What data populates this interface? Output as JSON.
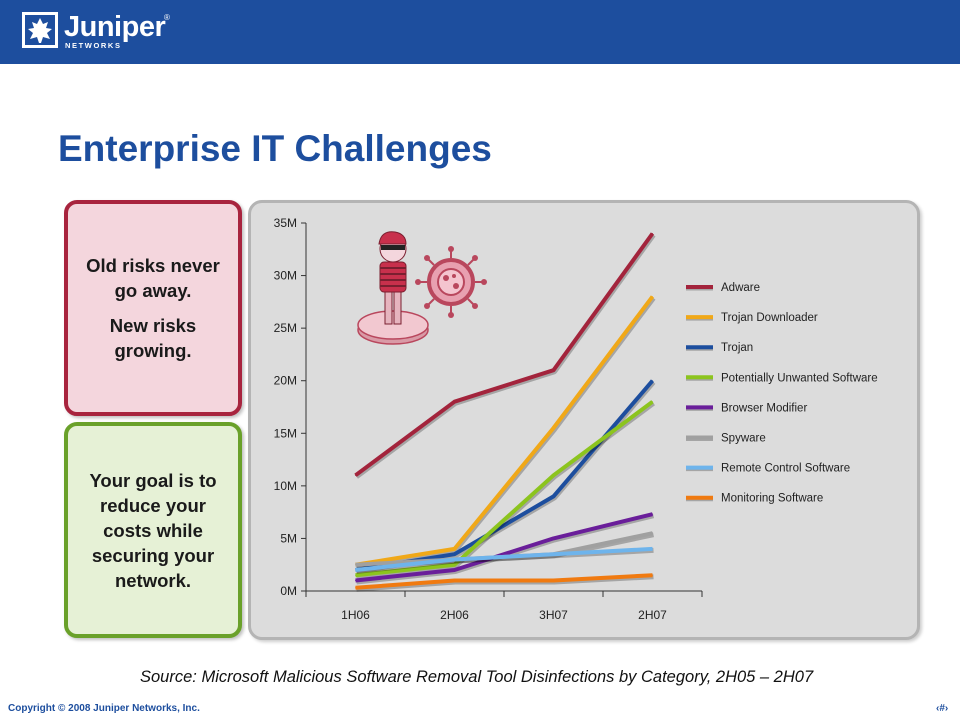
{
  "header": {
    "brand": "Juniper",
    "brand_sub": "NETWORKS",
    "brand_mark": "®",
    "color": "#1d4e9e"
  },
  "slide": {
    "title": "Enterprise IT Challenges",
    "box_risks": {
      "line1": "Old risks never go away.",
      "line2": "New risks growing.",
      "border_color": "#a8243e",
      "fill": "#f4d6dd"
    },
    "box_goal": {
      "text": "Your goal is to reduce your costs while securing your network.",
      "border_color": "#6aa12a",
      "fill": "#e6f1d6"
    },
    "source": "Source: Microsoft Malicious Software Removal Tool Disinfections by Category, 2H05 – 2H07"
  },
  "footer": {
    "copyright": "Copyright © 2008 Juniper Networks, Inc.",
    "page": "‹#›"
  },
  "illustration": {
    "icons": [
      "thief-icon",
      "virus-icon"
    ]
  },
  "chart_data": {
    "type": "line",
    "categories": [
      "1H06",
      "2H06",
      "3H07",
      "2H07"
    ],
    "ylim": [
      0,
      35
    ],
    "yticks": [
      "0M",
      "5M",
      "10M",
      "15M",
      "20M",
      "25M",
      "30M",
      "35M"
    ],
    "xlabel": "",
    "ylabel": "",
    "grid": false,
    "legend_position": "right",
    "series": [
      {
        "name": "Adware",
        "color": "#a3243c",
        "values": [
          11,
          18,
          21,
          34
        ]
      },
      {
        "name": "Trojan Downloader",
        "color": "#f0a818",
        "values": [
          2.5,
          4,
          15.5,
          28
        ]
      },
      {
        "name": "Trojan",
        "color": "#1d4e9e",
        "values": [
          2,
          3.5,
          9,
          20
        ]
      },
      {
        "name": "Potentially Unwanted Software",
        "color": "#8cc41e",
        "values": [
          1.5,
          2.5,
          11,
          18
        ]
      },
      {
        "name": "Browser Modifier",
        "color": "#6a1e9a",
        "values": [
          1,
          2,
          5,
          7.3
        ]
      },
      {
        "name": "Spyware",
        "color": "#a0a0a0",
        "values": [
          2.5,
          3,
          3.5,
          5.5
        ]
      },
      {
        "name": "Remote Control Software",
        "color": "#6eb4ec",
        "values": [
          2,
          3,
          3.5,
          4
        ]
      },
      {
        "name": "Monitoring Software",
        "color": "#f07a10",
        "values": [
          0.3,
          1,
          1,
          1.5
        ]
      }
    ]
  }
}
